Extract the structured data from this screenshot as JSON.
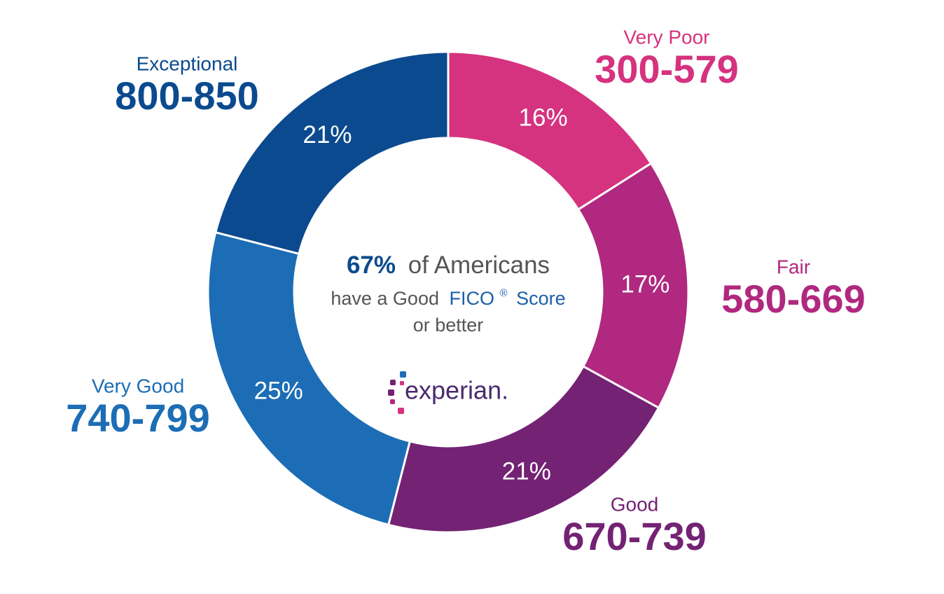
{
  "chart_data": {
    "type": "donut",
    "categories": [
      "Very Poor",
      "Fair",
      "Good",
      "Very Good",
      "Exceptional"
    ],
    "ranges": [
      "300-579",
      "580-669",
      "670-739",
      "740-799",
      "800-850"
    ],
    "values": [
      16,
      17,
      21,
      25,
      21
    ],
    "value_labels": [
      "16%",
      "17%",
      "21%",
      "25%",
      "21%"
    ],
    "colors": [
      "#d5327f",
      "#b0287f",
      "#742274",
      "#1c6db5",
      "#0b4a8e"
    ],
    "center_text": {
      "highlight": "67%",
      "line1": "of Americans",
      "line2_start": "have a Good",
      "brand": "FICO",
      "mark": "®",
      "line2_end": "Score",
      "line3": "or better"
    },
    "logo": "experian."
  }
}
